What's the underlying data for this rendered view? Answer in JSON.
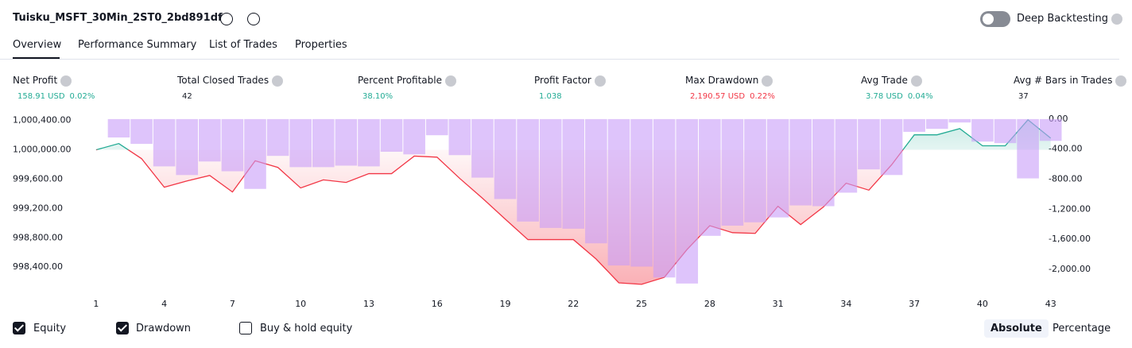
{
  "header": {
    "title": "Tuisku_MSFT_30Min_2ST0_2bd891df",
    "deep_backtesting": "Deep Backtesting"
  },
  "tabs": [
    "Overview",
    "Performance Summary",
    "List of Trades",
    "Properties"
  ],
  "metrics": [
    {
      "label": "Net Profit",
      "value": "158.91 USD",
      "percent": "0.02%",
      "color": "#22ab94"
    },
    {
      "label": "Total Closed Trades",
      "value": "42",
      "color": "#131722"
    },
    {
      "label": "Percent Profitable",
      "value": "38.10%",
      "color": "#22ab94"
    },
    {
      "label": "Profit Factor",
      "value": "1.038",
      "color": "#22ab94"
    },
    {
      "label": "Max Drawdown",
      "value": "2,190.57 USD",
      "percent": "0.22%",
      "color": "#f23645"
    },
    {
      "label": "Avg Trade",
      "value": "3.78 USD",
      "percent": "0.04%",
      "color": "#22ab94"
    },
    {
      "label": "Avg # Bars in Trades",
      "value": "37",
      "color": "#131722"
    }
  ],
  "chart_data": {
    "type": "combo",
    "x": [
      1,
      2,
      3,
      4,
      5,
      6,
      7,
      8,
      9,
      10,
      11,
      12,
      13,
      14,
      15,
      16,
      17,
      18,
      19,
      20,
      21,
      22,
      23,
      24,
      25,
      26,
      27,
      28,
      29,
      30,
      31,
      32,
      33,
      34,
      35,
      36,
      37,
      38,
      39,
      40,
      41,
      42,
      43
    ],
    "xlim": [
      0.62,
      43.5
    ],
    "xticks": [
      1,
      4,
      7,
      10,
      13,
      16,
      19,
      22,
      25,
      28,
      31,
      34,
      37,
      40,
      43
    ],
    "series": [
      {
        "name": "Equity",
        "type": "line",
        "color": "#f23645",
        "color_above": "#22ab94",
        "values": [
          1000000,
          1000086,
          999880,
          999490,
          999576,
          999650,
          999425,
          999850,
          999760,
          999480,
          999590,
          999555,
          999675,
          999675,
          999915,
          999900,
          999610,
          999340,
          999055,
          998775,
          998775,
          998775,
          998510,
          998185,
          998165,
          998260,
          998640,
          998965,
          998870,
          998860,
          999230,
          998980,
          999220,
          999545,
          999450,
          999795,
          1000205,
          1000205,
          1000290,
          1000055,
          1000055,
          1000410,
          1000158.91
        ]
      },
      {
        "name": "Drawdown",
        "type": "bar",
        "axis": "y2",
        "color": "#c89cf8",
        "values": [
          null,
          -245,
          -330,
          -630,
          -745,
          -565,
          -695,
          -930,
          -490,
          -640,
          -640,
          -620,
          -630,
          -435,
          -470,
          -215,
          -480,
          -780,
          -1065,
          -1365,
          -1450,
          -1460,
          -1655,
          -1950,
          -1965,
          -2110,
          -2190.57,
          -1555,
          -1420,
          -1375,
          -1310,
          -1150,
          -1160,
          -980,
          -670,
          -745,
          -170,
          -130,
          -45,
          -300,
          -320,
          -790,
          -290
        ]
      }
    ],
    "ylim": [
      998120,
      1000440
    ],
    "yticks": [
      {
        "value": 998400,
        "label": "998,400.00"
      },
      {
        "value": 998800,
        "label": "998,800.00"
      },
      {
        "value": 999200,
        "label": "999,200.00"
      },
      {
        "value": 999600,
        "label": "999,600.00"
      },
      {
        "value": 1000000,
        "label": "1,000,000.00"
      },
      {
        "value": 1000400,
        "label": "1,000,400.00"
      }
    ],
    "y2lim": [
      -2245,
      20
    ],
    "y2ticks": [
      {
        "value": 0,
        "label": "0.00"
      },
      {
        "value": -400,
        "label": "-400.00"
      },
      {
        "value": -800,
        "label": "-800.00"
      },
      {
        "value": -1200,
        "label": "-1,200.00"
      },
      {
        "value": -1600,
        "label": "-1,600.00"
      },
      {
        "value": -2000,
        "label": "-2,000.00"
      }
    ]
  },
  "legend_extra": "Buy & hold equity",
  "view_modes": [
    "Absolute",
    "Percentage"
  ]
}
